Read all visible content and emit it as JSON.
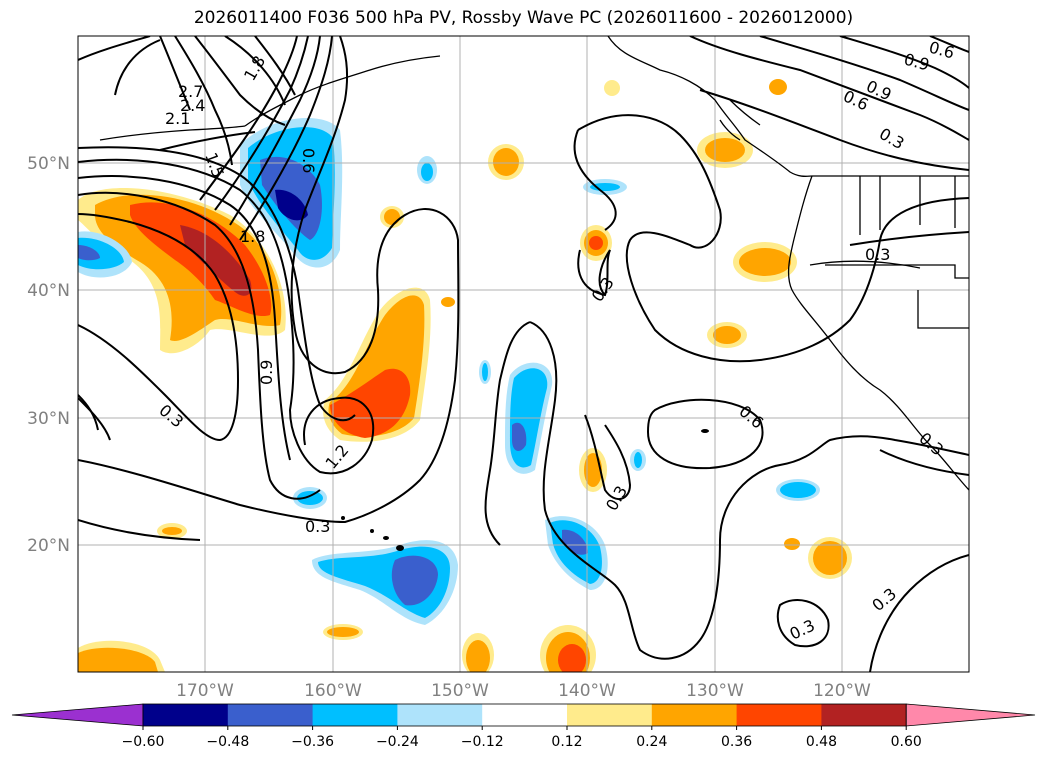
{
  "title": "2026011400 F036 500 hPa PV, Rossby Wave PC (2026011600 - 2026012000)",
  "lat_labels": [
    "50°N",
    "40°N",
    "30°N",
    "20°N"
  ],
  "lon_labels": [
    "170°W",
    "160°W",
    "150°W",
    "140°W",
    "130°W",
    "120°W"
  ],
  "colorbar": {
    "levels": [
      "−0.60",
      "−0.48",
      "−0.36",
      "−0.24",
      "−0.12",
      "0.12",
      "0.24",
      "0.36",
      "0.48",
      "0.60"
    ],
    "colors": [
      "#9b30d0",
      "#00008b",
      "#3a5fcd",
      "#00bfff",
      "#aee3fb",
      "#ffffff",
      "#ffeb8c",
      "#ffa500",
      "#ff4500",
      "#b22222",
      "#ff88aa"
    ]
  },
  "contour_labels": {
    "c1": "2.7",
    "c2": "2.4",
    "c3": "2.1",
    "c4": "1.8",
    "c5": "1.5",
    "c6": "0.6",
    "c7": "1.8",
    "c8": "0.9",
    "c9": "0.3",
    "c10": "1.2",
    "c11": "0.3",
    "c12": "0.3",
    "c13": "0.6",
    "c14": "0.3",
    "c15": "0.3",
    "c16": "0.3",
    "c17": "0.3",
    "c18": "0.6",
    "c19": "0.9",
    "c20": "0.6",
    "c21": "0.9",
    "c22": "0.3",
    "c23": "0.3"
  }
}
